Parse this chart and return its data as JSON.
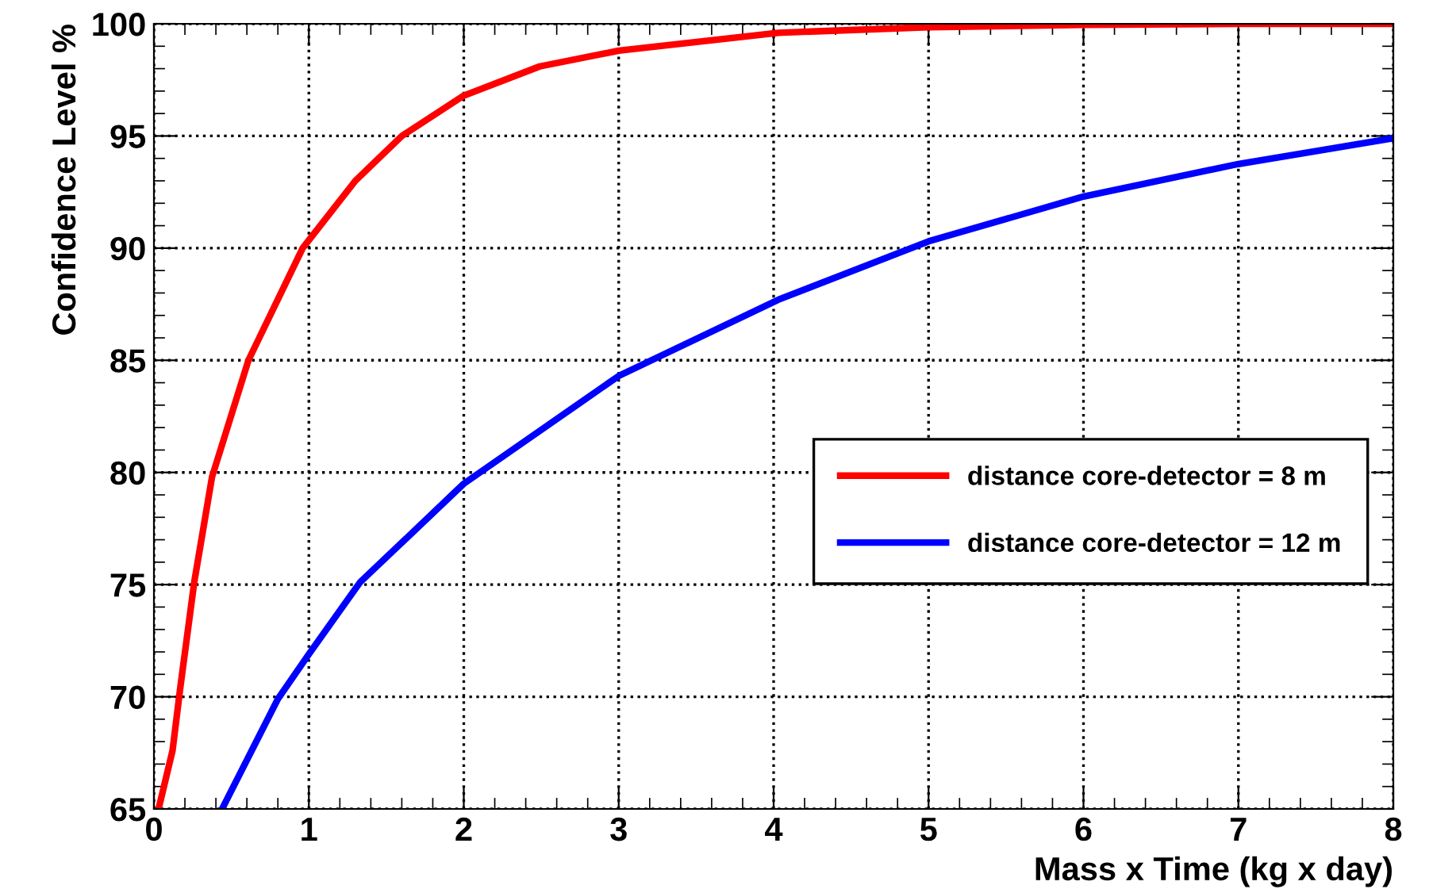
{
  "chart_data": {
    "type": "line",
    "xlabel": "Mass x Time (kg x day)",
    "ylabel": "Confidence Level %",
    "xlim": [
      0,
      8
    ],
    "xticks": [
      0,
      1,
      2,
      3,
      4,
      5,
      6,
      7,
      8
    ],
    "ylim": [
      65,
      100
    ],
    "yticks": [
      65,
      70,
      75,
      80,
      85,
      90,
      95,
      100
    ],
    "grid": true,
    "legend": "lower right",
    "line_style": "solid",
    "marker": "none",
    "series": [
      {
        "name": "distance core-detector = 8 m",
        "color": "#ff0000",
        "x": [
          0.03,
          0.12,
          0.17,
          0.26,
          0.375,
          0.61,
          0.96,
          1.3,
          1.6,
          2.0,
          2.49,
          3.0,
          4.03,
          5.0,
          6.0,
          7.0,
          8.0
        ],
        "values": [
          65,
          67.6,
          70.4,
          75.1,
          79.8,
          85.0,
          90.0,
          93.0,
          95.0,
          96.8,
          98.1,
          98.8,
          99.6,
          99.85,
          99.95,
          100,
          100
        ]
      },
      {
        "name": "distance core-detector = 12 m",
        "color": "#0000ff",
        "x": [
          0.44,
          0.8,
          1.0,
          1.33,
          2.0,
          3.0,
          4.03,
          5.0,
          6.0,
          7.0,
          8.0
        ],
        "values": [
          65,
          69.9,
          71.9,
          75.1,
          79.5,
          84.3,
          87.7,
          90.3,
          92.3,
          93.75,
          94.9
        ]
      }
    ]
  }
}
